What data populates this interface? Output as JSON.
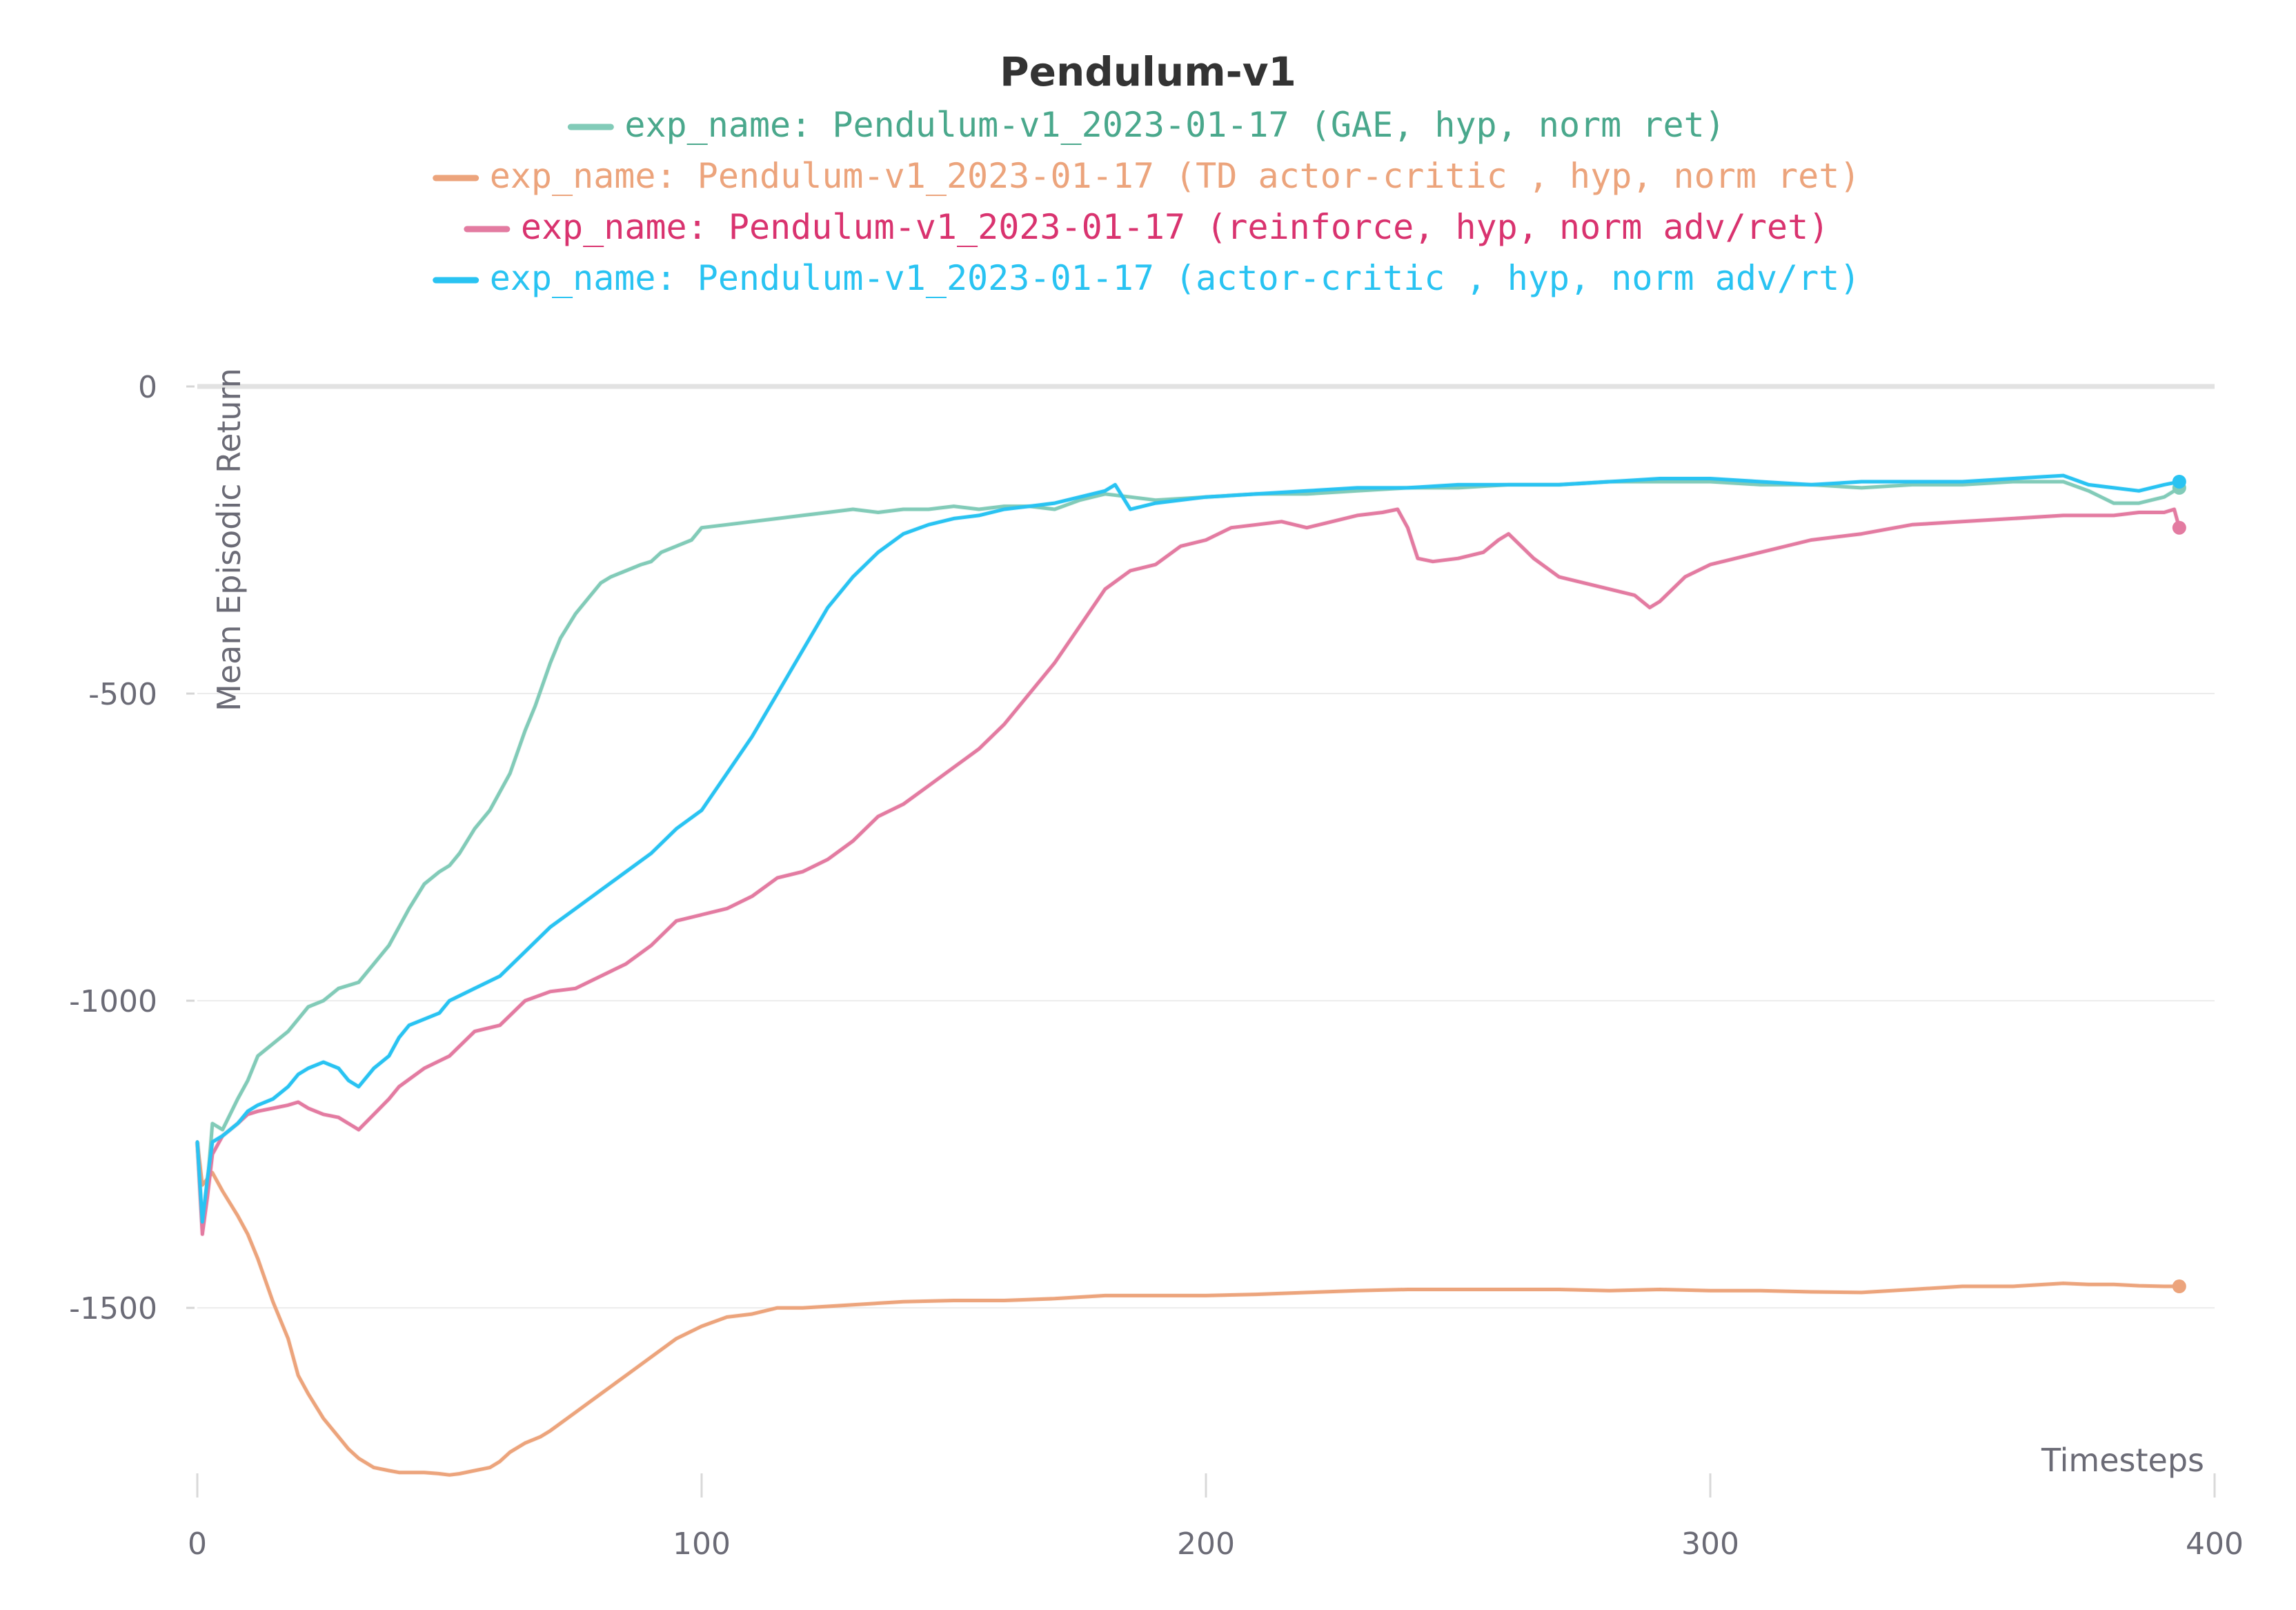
{
  "chart_data": {
    "type": "line",
    "title": "Pendulum-v1",
    "xlabel": "Timesteps",
    "ylabel": "Mean Episodic Return",
    "xlim": [
      0,
      400
    ],
    "ylim": [
      -1820,
      0
    ],
    "x_ticks": [
      0,
      100,
      200,
      300,
      400
    ],
    "y_ticks": [
      0,
      -500,
      -1000,
      -1500
    ],
    "x_tick_labels": [
      "0",
      "100",
      "200",
      "300",
      "400"
    ],
    "y_tick_labels": [
      "0",
      "-500",
      "-1000",
      "-1500"
    ],
    "grid": true,
    "legend_position": "top-center",
    "series": [
      {
        "name": "exp_name: Pendulum-v1_2023-01-17 (GAE, hyp, norm ret)",
        "color": "#82cbb8",
        "text_color": "#4aa88c",
        "x": [
          0,
          1,
          2,
          3,
          5,
          8,
          10,
          12,
          15,
          18,
          20,
          22,
          25,
          28,
          30,
          32,
          35,
          38,
          40,
          42,
          45,
          48,
          50,
          52,
          55,
          58,
          60,
          62,
          65,
          67,
          70,
          72,
          75,
          78,
          80,
          82,
          85,
          88,
          90,
          92,
          95,
          98,
          100,
          105,
          110,
          115,
          120,
          125,
          130,
          135,
          140,
          145,
          150,
          155,
          160,
          165,
          170,
          175,
          180,
          185,
          190,
          200,
          210,
          220,
          230,
          240,
          250,
          260,
          270,
          280,
          290,
          300,
          310,
          320,
          330,
          340,
          350,
          360,
          370,
          375,
          380,
          385,
          390,
          393
        ],
        "y": [
          -1230,
          -1370,
          -1300,
          -1200,
          -1210,
          -1160,
          -1130,
          -1090,
          -1070,
          -1050,
          -1030,
          -1010,
          -1000,
          -980,
          -975,
          -970,
          -940,
          -910,
          -880,
          -850,
          -810,
          -790,
          -780,
          -760,
          -720,
          -690,
          -660,
          -630,
          -560,
          -520,
          -450,
          -410,
          -370,
          -340,
          -320,
          -310,
          -300,
          -290,
          -285,
          -270,
          -260,
          -250,
          -230,
          -225,
          -220,
          -215,
          -210,
          -205,
          -200,
          -205,
          -200,
          -200,
          -195,
          -200,
          -195,
          -195,
          -200,
          -185,
          -175,
          -180,
          -185,
          -180,
          -175,
          -175,
          -170,
          -165,
          -165,
          -160,
          -160,
          -155,
          -155,
          -155,
          -160,
          -160,
          -165,
          -160,
          -160,
          -155,
          -155,
          -170,
          -190,
          -190,
          -180,
          -165
        ]
      },
      {
        "name": "exp_name: Pendulum-v1_2023-01-17 (TD actor-critic , hyp, norm ret)",
        "color": "#eca47c",
        "text_color": "#eca47c",
        "x": [
          0,
          1,
          2,
          3,
          5,
          8,
          10,
          12,
          15,
          18,
          20,
          22,
          25,
          28,
          30,
          32,
          35,
          38,
          40,
          42,
          45,
          48,
          50,
          52,
          55,
          58,
          60,
          62,
          65,
          68,
          70,
          75,
          80,
          85,
          90,
          95,
          100,
          105,
          110,
          115,
          120,
          130,
          140,
          150,
          160,
          170,
          180,
          190,
          200,
          210,
          220,
          230,
          240,
          250,
          260,
          270,
          280,
          290,
          300,
          310,
          320,
          330,
          340,
          350,
          360,
          370,
          375,
          380,
          385,
          390,
          393
        ],
        "y": [
          -1230,
          -1300,
          -1290,
          -1280,
          -1310,
          -1350,
          -1380,
          -1420,
          -1490,
          -1550,
          -1610,
          -1640,
          -1680,
          -1710,
          -1730,
          -1745,
          -1760,
          -1765,
          -1768,
          -1768,
          -1768,
          -1770,
          -1772,
          -1770,
          -1765,
          -1760,
          -1750,
          -1735,
          -1720,
          -1710,
          -1700,
          -1670,
          -1640,
          -1610,
          -1580,
          -1550,
          -1530,
          -1515,
          -1510,
          -1500,
          -1500,
          -1495,
          -1490,
          -1488,
          -1488,
          -1485,
          -1480,
          -1480,
          -1480,
          -1478,
          -1475,
          -1472,
          -1470,
          -1470,
          -1470,
          -1470,
          -1472,
          -1470,
          -1472,
          -1472,
          -1474,
          -1475,
          -1470,
          -1465,
          -1465,
          -1460,
          -1462,
          -1462,
          -1464,
          -1465,
          -1465
        ]
      },
      {
        "name": "exp_name: Pendulum-v1_2023-01-17 (reinforce, hyp, norm adv/ret)",
        "color": "#e37ba1",
        "text_color": "#d9336f",
        "x": [
          0,
          1,
          2,
          3,
          5,
          8,
          10,
          12,
          15,
          18,
          20,
          22,
          25,
          28,
          30,
          32,
          35,
          38,
          40,
          45,
          50,
          55,
          60,
          65,
          70,
          75,
          80,
          85,
          90,
          95,
          100,
          105,
          110,
          115,
          120,
          125,
          130,
          135,
          140,
          145,
          150,
          155,
          160,
          165,
          170,
          175,
          180,
          185,
          190,
          195,
          200,
          205,
          210,
          215,
          220,
          225,
          230,
          235,
          238,
          240,
          242,
          245,
          250,
          255,
          258,
          260,
          265,
          270,
          275,
          280,
          285,
          288,
          290,
          295,
          300,
          305,
          310,
          320,
          330,
          340,
          350,
          360,
          370,
          375,
          380,
          385,
          390,
          392,
          393
        ],
        "y": [
          -1230,
          -1380,
          -1320,
          -1250,
          -1220,
          -1200,
          -1185,
          -1180,
          -1175,
          -1170,
          -1165,
          -1175,
          -1185,
          -1190,
          -1200,
          -1210,
          -1185,
          -1160,
          -1140,
          -1110,
          -1090,
          -1050,
          -1040,
          -1000,
          -985,
          -980,
          -960,
          -940,
          -910,
          -870,
          -860,
          -850,
          -830,
          -800,
          -790,
          -770,
          -740,
          -700,
          -680,
          -650,
          -620,
          -590,
          -550,
          -500,
          -450,
          -390,
          -330,
          -300,
          -290,
          -260,
          -250,
          -230,
          -225,
          -220,
          -230,
          -220,
          -210,
          -205,
          -200,
          -230,
          -280,
          -285,
          -280,
          -270,
          -250,
          -240,
          -280,
          -310,
          -320,
          -330,
          -340,
          -360,
          -350,
          -310,
          -290,
          -280,
          -270,
          -250,
          -240,
          -225,
          -220,
          -215,
          -210,
          -210,
          -210,
          -205,
          -205,
          -200,
          -230
        ]
      },
      {
        "name": "exp_name: Pendulum-v1_2023-01-17 (actor-critic , hyp, norm adv/rt)",
        "color": "#29c3f2",
        "text_color": "#29c3f2",
        "x": [
          0,
          1,
          2,
          3,
          5,
          8,
          10,
          12,
          15,
          18,
          20,
          22,
          25,
          28,
          30,
          32,
          35,
          38,
          40,
          42,
          45,
          48,
          50,
          55,
          60,
          65,
          70,
          75,
          80,
          85,
          90,
          95,
          100,
          105,
          110,
          115,
          120,
          125,
          130,
          135,
          140,
          145,
          150,
          155,
          160,
          165,
          170,
          175,
          180,
          182,
          185,
          190,
          195,
          200,
          210,
          220,
          230,
          240,
          250,
          260,
          270,
          280,
          290,
          300,
          310,
          320,
          330,
          340,
          350,
          360,
          370,
          375,
          380,
          385,
          390,
          393
        ],
        "y": [
          -1230,
          -1360,
          -1290,
          -1230,
          -1220,
          -1200,
          -1180,
          -1170,
          -1160,
          -1140,
          -1120,
          -1110,
          -1100,
          -1110,
          -1130,
          -1140,
          -1110,
          -1090,
          -1060,
          -1040,
          -1030,
          -1020,
          -1000,
          -980,
          -960,
          -920,
          -880,
          -850,
          -820,
          -790,
          -760,
          -720,
          -690,
          -630,
          -570,
          -500,
          -430,
          -360,
          -310,
          -270,
          -240,
          -225,
          -215,
          -210,
          -200,
          -195,
          -190,
          -180,
          -170,
          -160,
          -200,
          -190,
          -185,
          -180,
          -175,
          -170,
          -165,
          -165,
          -160,
          -160,
          -160,
          -155,
          -150,
          -150,
          -155,
          -160,
          -155,
          -155,
          -155,
          -150,
          -145,
          -160,
          -165,
          -170,
          -160,
          -155
        ]
      }
    ]
  }
}
